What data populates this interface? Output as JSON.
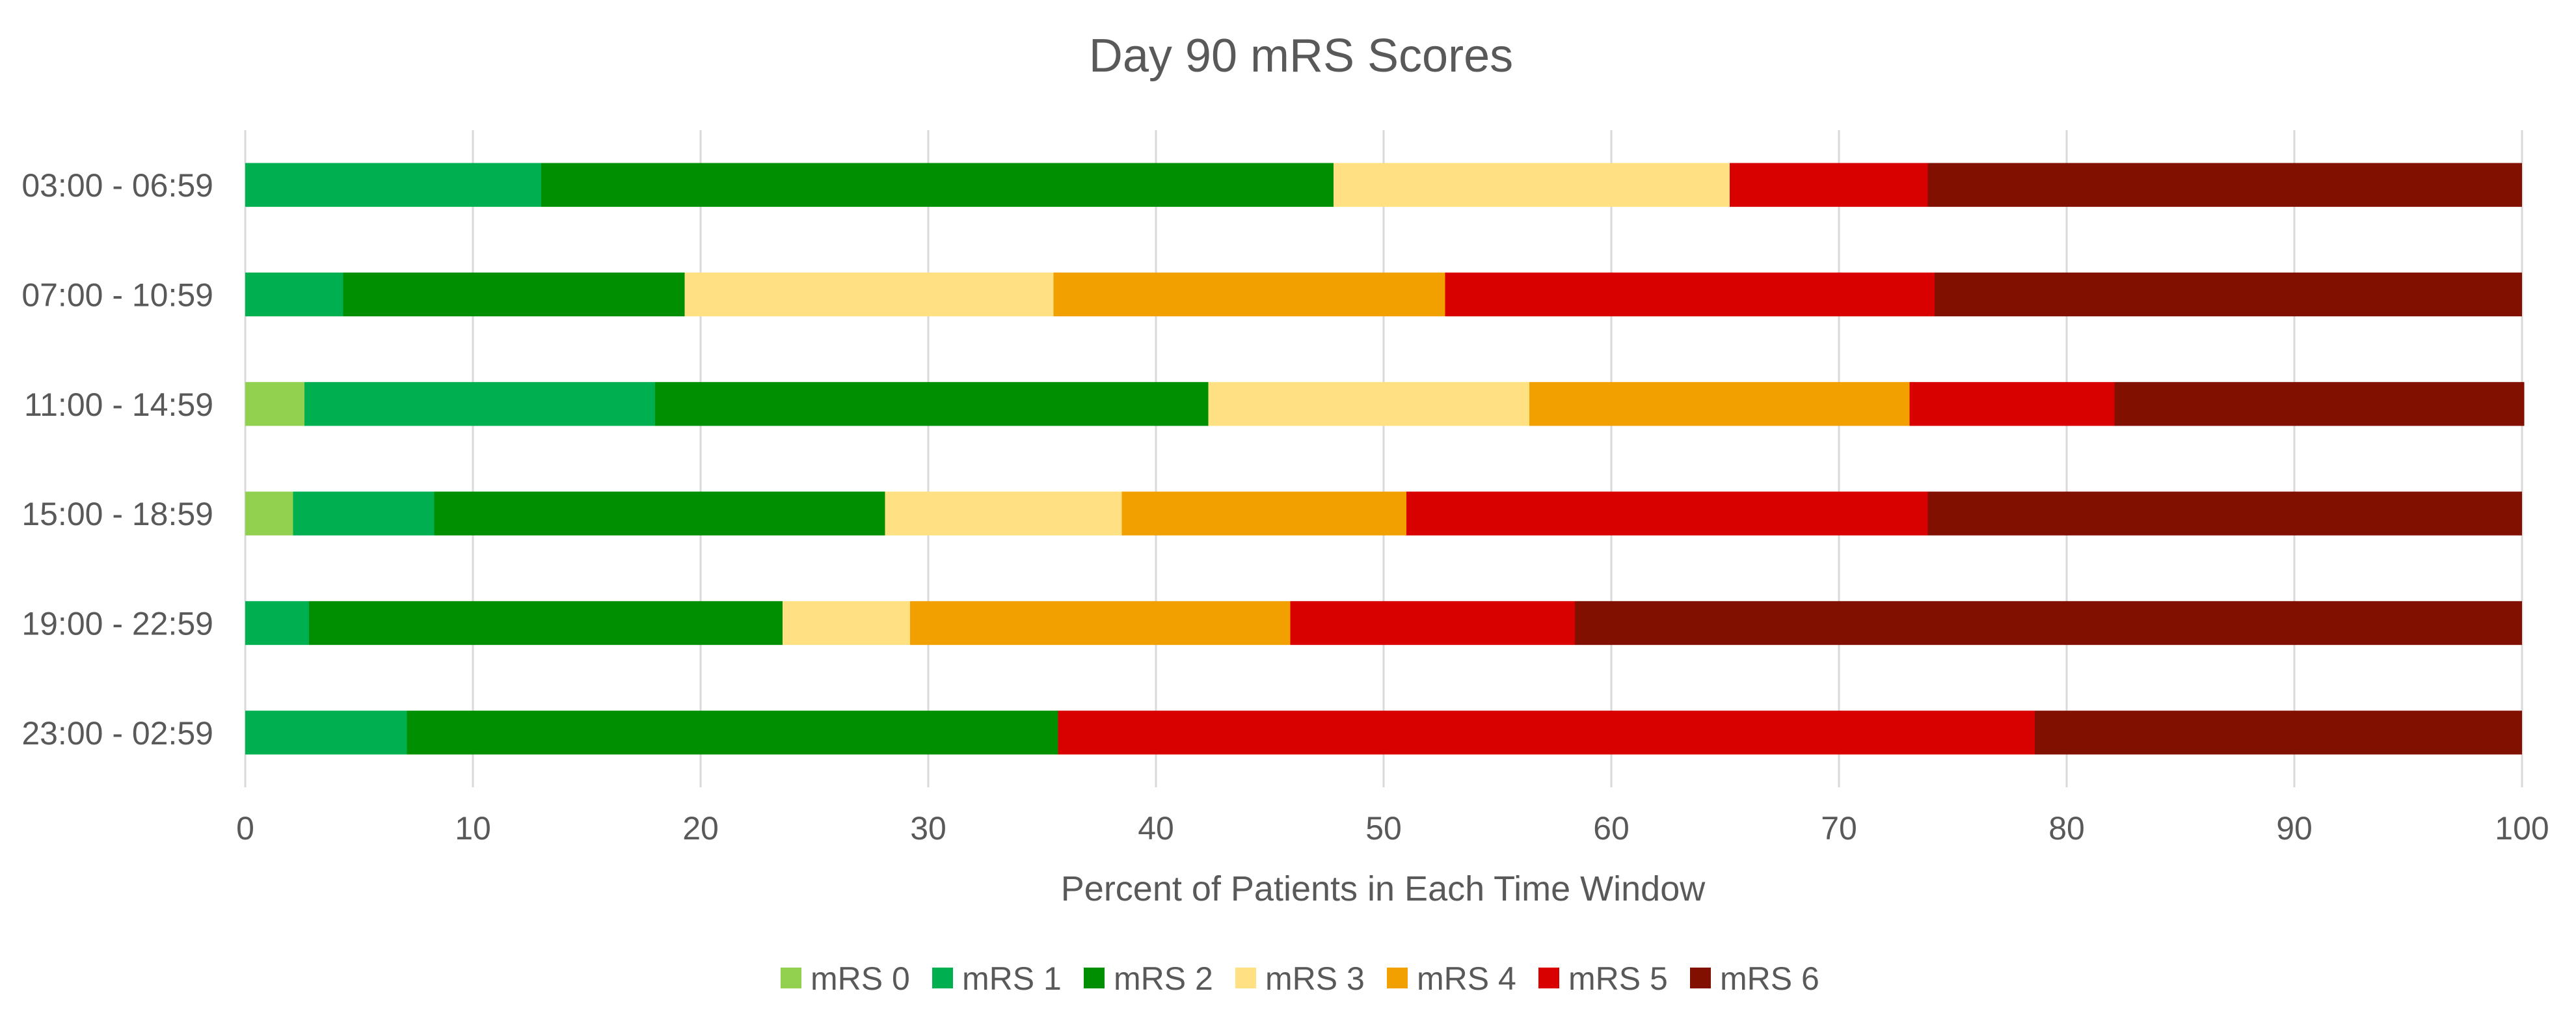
{
  "chart_data": {
    "type": "bar",
    "orientation": "horizontal",
    "stacked": true,
    "title": "Day 90 mRS Scores",
    "xlabel": "Percent of Patients in Each Time Window",
    "ylabel": "",
    "xlim": [
      0,
      100
    ],
    "x_ticks": [
      "0",
      "10",
      "20",
      "30",
      "40",
      "50",
      "60",
      "70",
      "80",
      "90",
      "100"
    ],
    "grid": "vertical",
    "legend_position": "bottom",
    "categories": [
      "03:00 - 06:59",
      "07:00 - 10:59",
      "11:00 - 14:59",
      "15:00 - 18:59",
      "19:00 - 22:59",
      "23:00 - 02:59"
    ],
    "series": [
      {
        "name": "mRS 0",
        "color": "#92D050",
        "values": [
          0,
          0,
          2.6,
          2.1,
          0,
          0
        ]
      },
      {
        "name": "mRS 1",
        "color": "#00B050",
        "values": [
          13.0,
          4.3,
          15.4,
          6.2,
          2.8,
          7.1
        ]
      },
      {
        "name": "mRS 2",
        "color": "#008F00",
        "values": [
          34.8,
          15.0,
          24.3,
          19.8,
          20.8,
          28.6
        ]
      },
      {
        "name": "mRS 3",
        "color": "#FFE082",
        "values": [
          17.4,
          16.2,
          14.1,
          10.4,
          5.6,
          0
        ]
      },
      {
        "name": "mRS 4",
        "color": "#F2A000",
        "values": [
          0,
          17.2,
          16.7,
          12.5,
          16.7,
          0
        ]
      },
      {
        "name": "mRS 5",
        "color": "#D90000",
        "values": [
          8.7,
          21.5,
          9.0,
          22.9,
          12.5,
          42.9
        ]
      },
      {
        "name": "mRS 6",
        "color": "#821000",
        "values": [
          26.1,
          25.8,
          18.0,
          26.1,
          41.6,
          21.4
        ]
      }
    ]
  }
}
